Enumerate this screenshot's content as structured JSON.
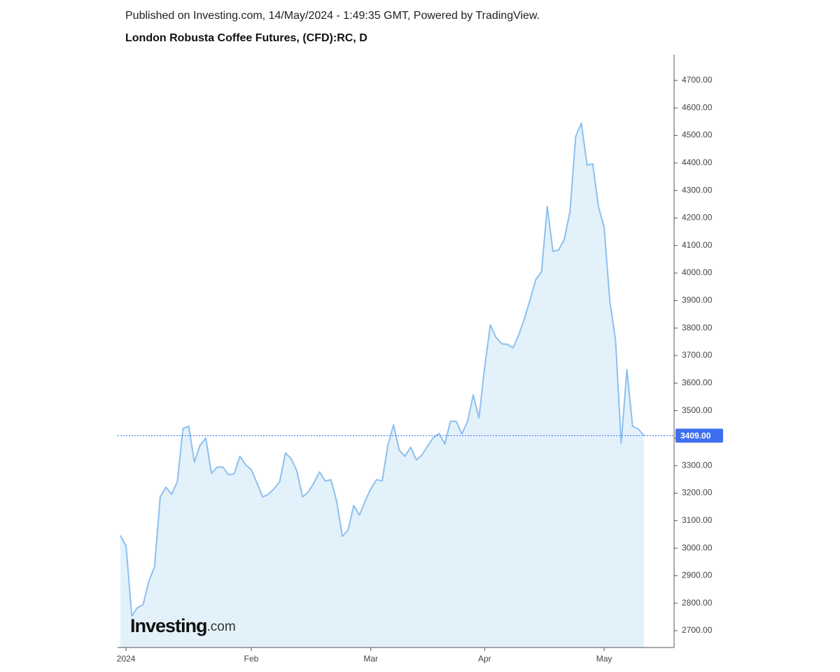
{
  "header": "Published on Investing.com, 14/May/2024 - 1:49:35 GMT, Powered by TradingView.",
  "chart_data": {
    "type": "area",
    "title": "London Robusta Coffee Futures, (CFD):RC, D",
    "watermark": [
      "Investing",
      ".com"
    ],
    "categories": [
      null,
      "2024",
      null,
      null,
      null,
      null,
      null,
      null,
      null,
      null,
      null,
      null,
      null,
      null,
      null,
      null,
      null,
      null,
      null,
      null,
      null,
      null,
      null,
      "Feb",
      null,
      null,
      null,
      null,
      null,
      null,
      null,
      null,
      null,
      null,
      null,
      null,
      null,
      null,
      null,
      null,
      null,
      null,
      null,
      null,
      "Mar",
      null,
      null,
      null,
      null,
      null,
      null,
      null,
      null,
      null,
      null,
      null,
      null,
      null,
      null,
      null,
      null,
      null,
      null,
      null,
      "Apr",
      null,
      null,
      null,
      null,
      null,
      null,
      null,
      null,
      null,
      null,
      null,
      null,
      null,
      null,
      null,
      null,
      null,
      null,
      null,
      null,
      "May",
      null,
      null,
      null,
      null,
      null,
      null,
      null
    ],
    "values": [
      3046,
      3008,
      2754,
      2784,
      2795,
      2881,
      2932,
      3186,
      3222,
      3196,
      3242,
      3435,
      3443,
      3313,
      3374,
      3400,
      3272,
      3295,
      3295,
      3267,
      3270,
      3334,
      3303,
      3285,
      3237,
      3186,
      3196,
      3216,
      3242,
      3346,
      3326,
      3282,
      3186,
      3204,
      3237,
      3277,
      3244,
      3249,
      3171,
      3043,
      3066,
      3155,
      3120,
      3171,
      3216,
      3249,
      3244,
      3374,
      3448,
      3356,
      3334,
      3367,
      3321,
      3339,
      3372,
      3402,
      3417,
      3379,
      3461,
      3461,
      3415,
      3461,
      3557,
      3473,
      3656,
      3812,
      3766,
      3743,
      3741,
      3728,
      3776,
      3835,
      3904,
      3977,
      4005,
      4242,
      4079,
      4084,
      4122,
      4224,
      4496,
      4545,
      4392,
      4397,
      4242,
      4166,
      3898,
      3758,
      3382,
      3649,
      3443,
      3433,
      3409
    ],
    "color": "#8cc0ee",
    "fill": "#e3f1fb",
    "last_price": {
      "value": 3409,
      "label": "3409.00"
    },
    "last_price_color": "#3f6ff0",
    "ylim": [
      2639,
      4794
    ],
    "yticks": [
      {
        "value": 2700,
        "label": "2700.00"
      },
      {
        "value": 2800,
        "label": "2800.00"
      },
      {
        "value": 2900,
        "label": "2900.00"
      },
      {
        "value": 3000,
        "label": "3000.00"
      },
      {
        "value": 3100,
        "label": "3100.00"
      },
      {
        "value": 3200,
        "label": "3200.00"
      },
      {
        "value": 3300,
        "label": "3300.00"
      },
      {
        "value": 3400,
        "label": "3400.00"
      },
      {
        "value": 3500,
        "label": "3500.00"
      },
      {
        "value": 3600,
        "label": "3600.00"
      },
      {
        "value": 3700,
        "label": "3700.00"
      },
      {
        "value": 3800,
        "label": "3800.00"
      },
      {
        "value": 3900,
        "label": "3900.00"
      },
      {
        "value": 4000,
        "label": "4000.00"
      },
      {
        "value": 4100,
        "label": "4100.00"
      },
      {
        "value": 4200,
        "label": "4200.00"
      },
      {
        "value": 4300,
        "label": "4300.00"
      },
      {
        "value": 4400,
        "label": "4400.00"
      },
      {
        "value": 4500,
        "label": "4500.00"
      },
      {
        "value": 4600,
        "label": "4600.00"
      },
      {
        "value": 4700,
        "label": "4700.00"
      }
    ]
  }
}
